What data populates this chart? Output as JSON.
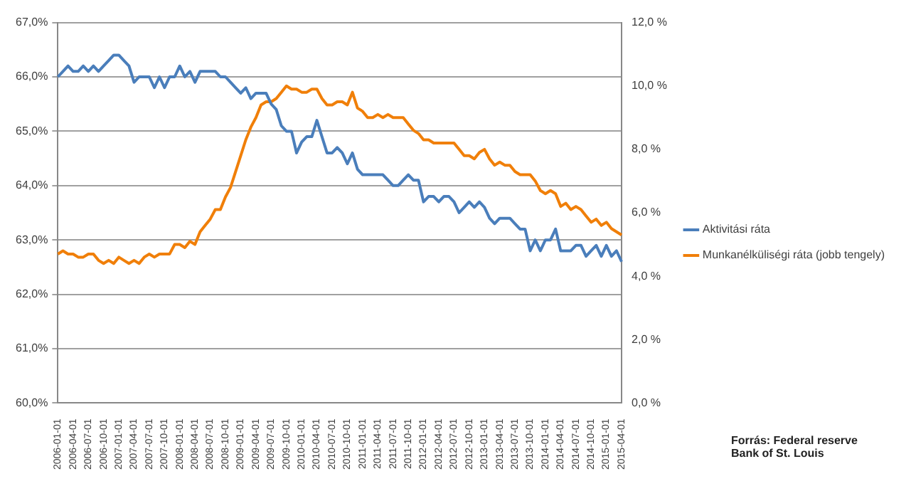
{
  "chart_data": {
    "type": "line",
    "categories": [
      "2006-01-01",
      null,
      null,
      "2006-04-01",
      null,
      null,
      "2006-07-01",
      null,
      null,
      "2006-10-01",
      null,
      null,
      "2007-01-01",
      null,
      null,
      "2007-04-01",
      null,
      null,
      "2007-07-01",
      null,
      null,
      "2007-10-01",
      null,
      null,
      "2008-01-01",
      null,
      null,
      "2008-04-01",
      null,
      null,
      "2008-07-01",
      null,
      null,
      "2008-10-01",
      null,
      null,
      "2009-01-01",
      null,
      null,
      "2009-04-01",
      null,
      null,
      "2009-07-01",
      null,
      null,
      "2009-10-01",
      null,
      null,
      "2010-01-01",
      null,
      null,
      "2010-04-01",
      null,
      null,
      "2010-07-01",
      null,
      null,
      "2010-10-01",
      null,
      null,
      "2011-01-01",
      null,
      null,
      "2011-04-01",
      null,
      null,
      "2011-07-01",
      null,
      null,
      "2011-10-01",
      null,
      null,
      "2012-01-01",
      null,
      null,
      "2012-04-01",
      null,
      null,
      "2012-07-01",
      null,
      null,
      "2012-10-01",
      null,
      null,
      "2013-01-01",
      null,
      null,
      "2013-04-01",
      null,
      null,
      "2013-07-01",
      null,
      null,
      "2013-10-01",
      null,
      null,
      "2014-01-01",
      null,
      null,
      "2014-04-01",
      null,
      null,
      "2014-07-01",
      null,
      null,
      "2014-10-01",
      null,
      null,
      "2015-01-01",
      null,
      null,
      "2015-04-01"
    ],
    "series": [
      {
        "name": "Aktivitási ráta",
        "color": "#4a7ebb",
        "values": [
          66.0,
          66.1,
          66.2,
          66.1,
          66.1,
          66.2,
          66.1,
          66.2,
          66.1,
          66.2,
          66.3,
          66.4,
          66.4,
          66.3,
          66.2,
          65.9,
          66.0,
          66.0,
          66.0,
          65.8,
          66.0,
          65.8,
          66.0,
          66.0,
          66.2,
          66.0,
          66.1,
          65.9,
          66.1,
          66.1,
          66.1,
          66.1,
          66.0,
          66.0,
          65.9,
          65.8,
          65.7,
          65.8,
          65.6,
          65.7,
          65.7,
          65.7,
          65.5,
          65.4,
          65.1,
          65.0,
          65.0,
          64.6,
          64.8,
          64.9,
          64.9,
          65.2,
          64.9,
          64.6,
          64.6,
          64.7,
          64.6,
          64.4,
          64.6,
          64.3,
          64.2,
          64.2,
          64.2,
          64.2,
          64.2,
          64.1,
          64.0,
          64.0,
          64.1,
          64.2,
          64.1,
          64.1,
          63.7,
          63.8,
          63.8,
          63.7,
          63.8,
          63.8,
          63.7,
          63.5,
          63.6,
          63.7,
          63.6,
          63.7,
          63.6,
          63.4,
          63.3,
          63.4,
          63.4,
          63.4,
          63.3,
          63.2,
          63.2,
          62.8,
          63.0,
          62.8,
          63.0,
          63.0,
          63.2,
          62.8,
          62.8,
          62.8,
          62.9,
          62.9,
          62.7,
          62.8,
          62.9,
          62.7,
          62.9,
          62.7,
          62.8,
          62.6
        ]
      },
      {
        "name": "Munkanélküliségi ráta (jobb tengely)",
        "color": "#f07f09",
        "axis": "y2",
        "values": [
          4.7,
          4.8,
          4.7,
          4.7,
          4.6,
          4.6,
          4.7,
          4.7,
          4.5,
          4.4,
          4.5,
          4.4,
          4.6,
          4.5,
          4.4,
          4.5,
          4.4,
          4.6,
          4.7,
          4.6,
          4.7,
          4.7,
          4.7,
          5.0,
          5.0,
          4.9,
          5.1,
          5.0,
          5.4,
          5.6,
          5.8,
          6.1,
          6.1,
          6.5,
          6.8,
          7.3,
          7.8,
          8.3,
          8.7,
          9.0,
          9.4,
          9.5,
          9.5,
          9.6,
          9.8,
          10.0,
          9.9,
          9.9,
          9.8,
          9.8,
          9.9,
          9.9,
          9.6,
          9.4,
          9.4,
          9.5,
          9.5,
          9.4,
          9.8,
          9.3,
          9.2,
          9.0,
          9.0,
          9.1,
          9.0,
          9.1,
          9.0,
          9.0,
          9.0,
          8.8,
          8.6,
          8.5,
          8.3,
          8.3,
          8.2,
          8.2,
          8.2,
          8.2,
          8.2,
          8.0,
          7.8,
          7.8,
          7.7,
          7.9,
          8.0,
          7.7,
          7.5,
          7.6,
          7.5,
          7.5,
          7.3,
          7.2,
          7.2,
          7.2,
          7.0,
          6.7,
          6.6,
          6.7,
          6.6,
          6.2,
          6.3,
          6.1,
          6.2,
          6.1,
          5.9,
          5.7,
          5.8,
          5.6,
          5.7,
          5.5,
          5.4,
          5.3
        ]
      }
    ],
    "ylim": [
      60,
      67
    ],
    "yticks": [
      {
        "value": 60,
        "label": "60,0%"
      },
      {
        "value": 61,
        "label": "61,0%"
      },
      {
        "value": 62,
        "label": "62,0%"
      },
      {
        "value": 63,
        "label": "63,0%"
      },
      {
        "value": 64,
        "label": "64,0%"
      },
      {
        "value": 65,
        "label": "65,0%"
      },
      {
        "value": 66,
        "label": "66,0%"
      },
      {
        "value": 67,
        "label": "67,0%"
      }
    ],
    "y2lim": [
      0,
      12
    ],
    "y2ticks": [
      {
        "value": 0,
        "label": "0,0 %"
      },
      {
        "value": 2,
        "label": "2,0 %"
      },
      {
        "value": 4,
        "label": "4,0 %"
      },
      {
        "value": 6,
        "label": "6,0 %"
      },
      {
        "value": 8,
        "label": "8,0 %"
      },
      {
        "value": 10,
        "label": "10,0 %"
      },
      {
        "value": 12,
        "label": "12,0 %"
      }
    ],
    "grid": "y",
    "legend": "right",
    "marker": "none",
    "line_style": "solid",
    "annotations": [
      "Forrás: Federal reserve Bank of St. Louis"
    ]
  }
}
